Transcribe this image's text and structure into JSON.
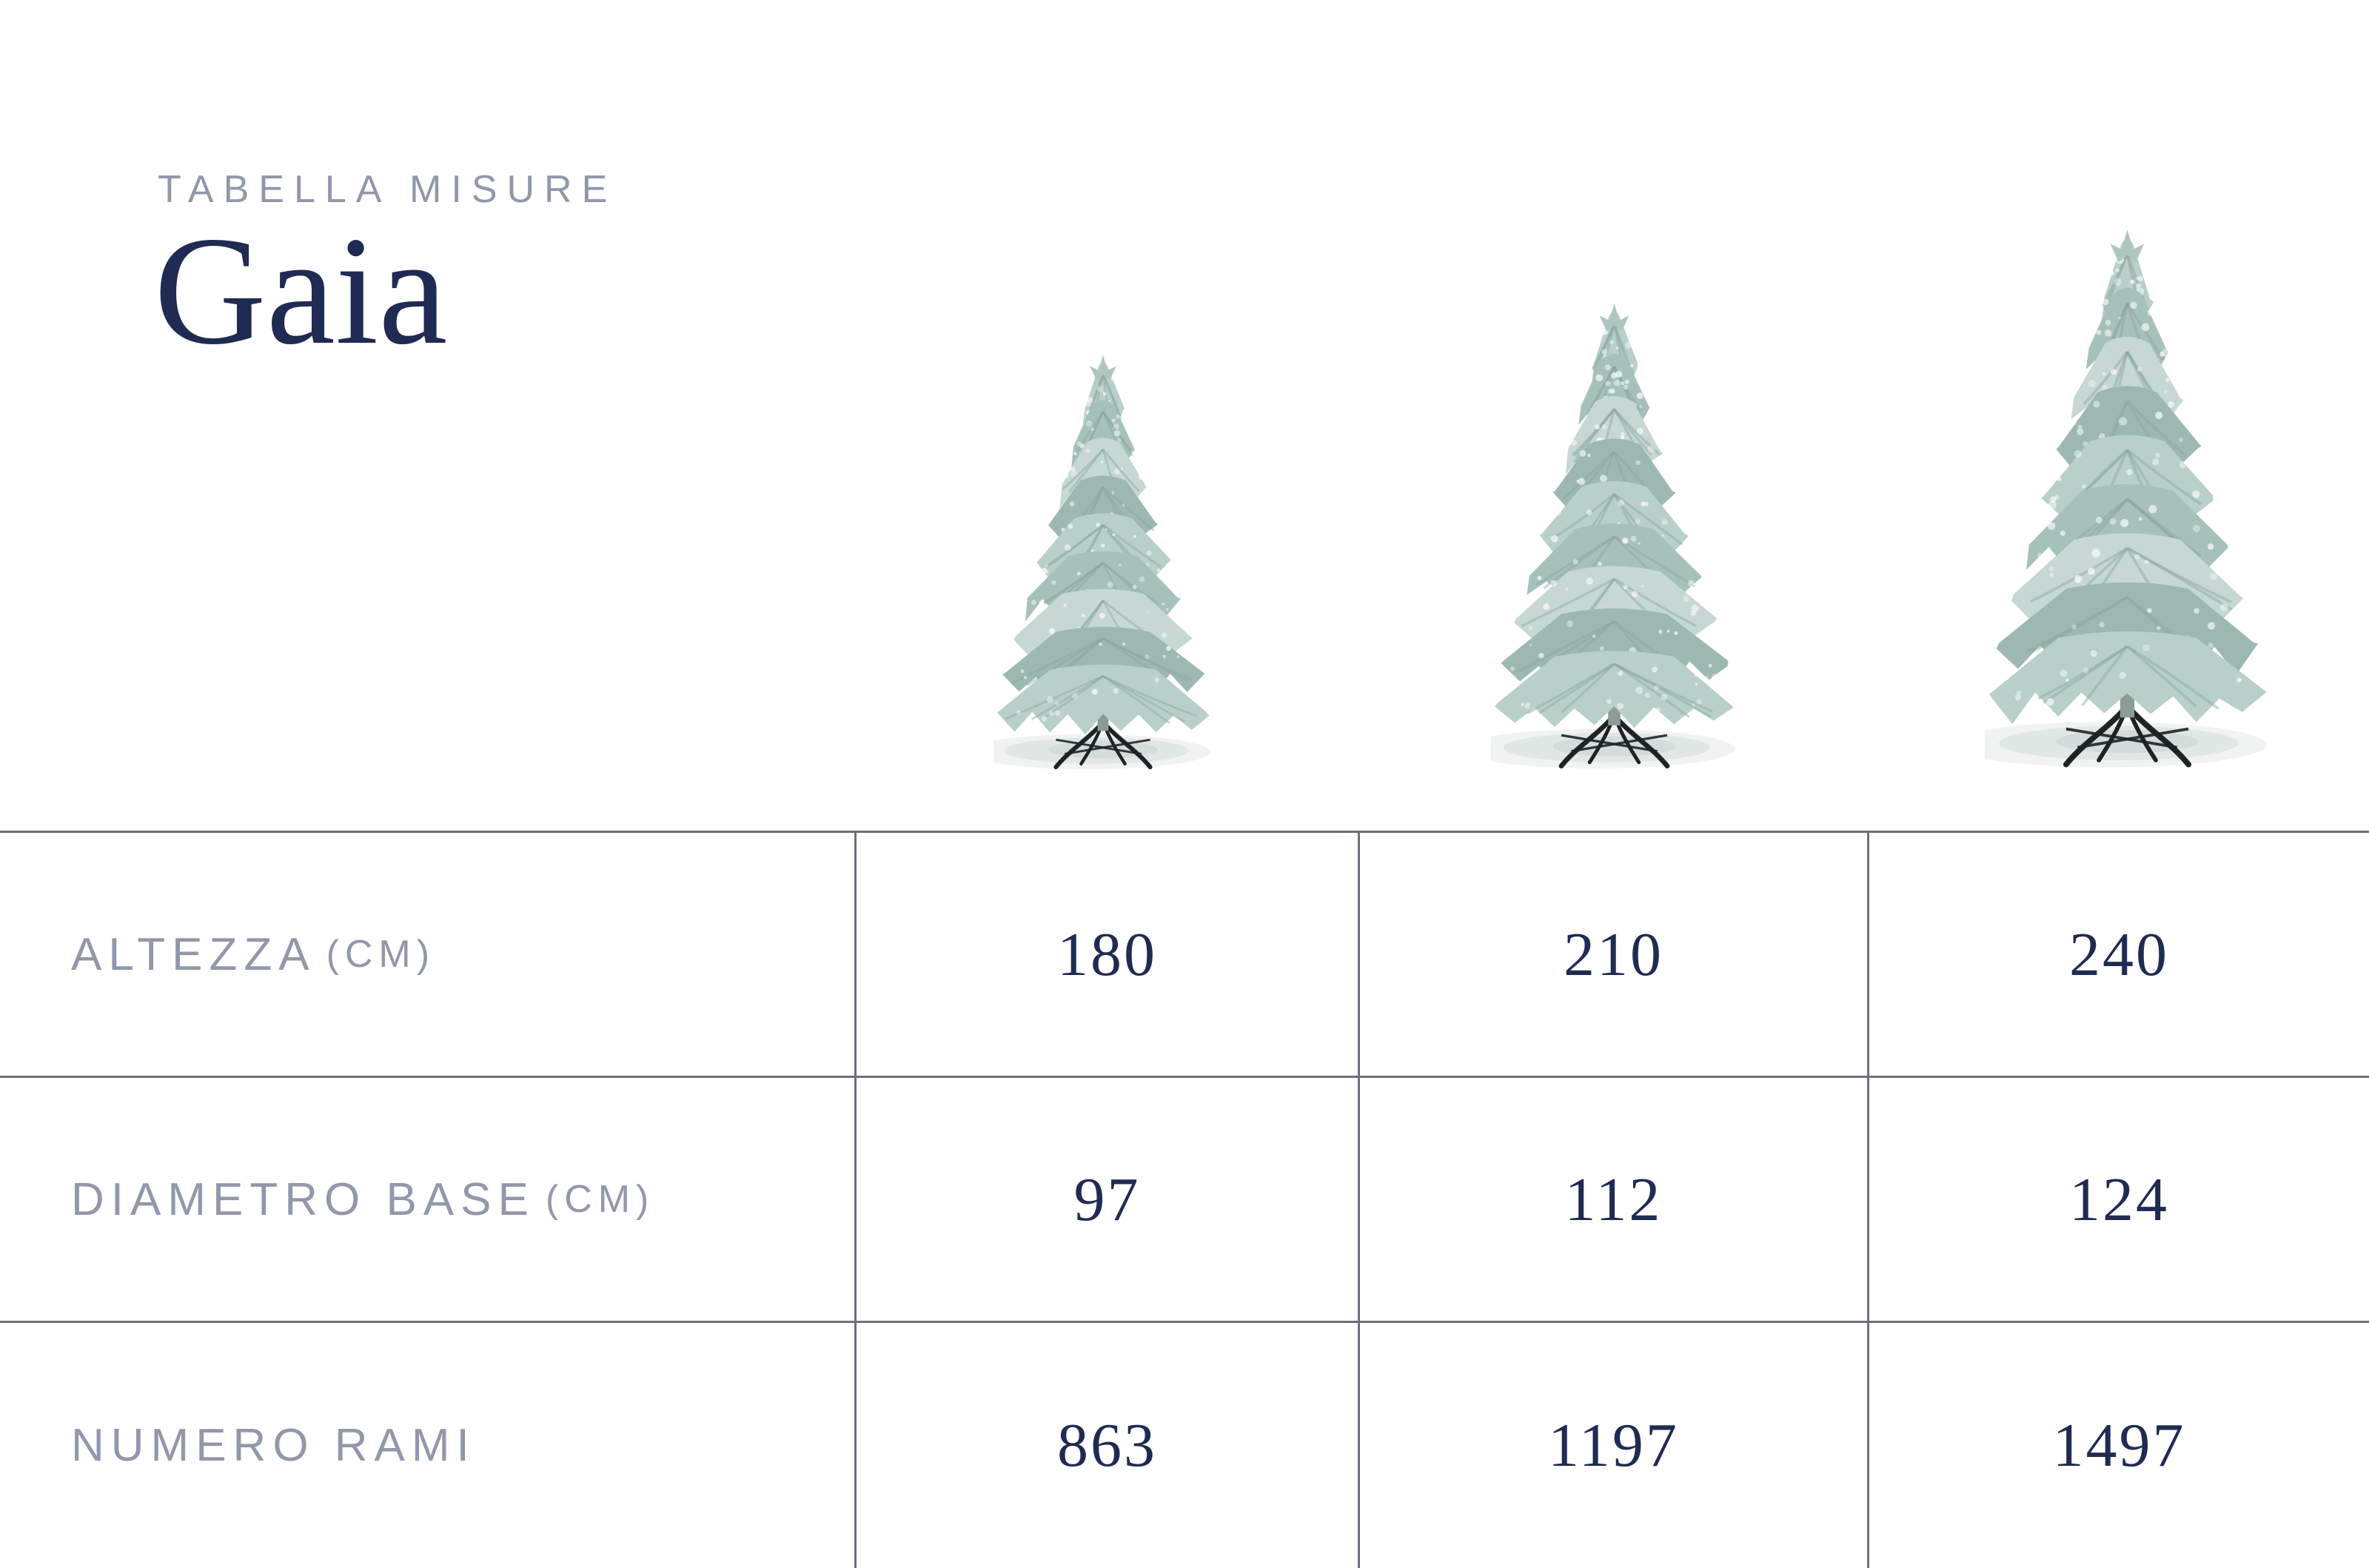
{
  "header": {
    "eyebrow": "TABELLA MISURE",
    "title": "Gaia"
  },
  "trees": [
    {
      "icon": "flocked-christmas-tree-icon",
      "size_label": "180"
    },
    {
      "icon": "flocked-christmas-tree-icon",
      "size_label": "210"
    },
    {
      "icon": "flocked-christmas-tree-icon",
      "size_label": "240"
    }
  ],
  "table": {
    "rows": [
      {
        "label": "ALTEZZA",
        "unit": "(CM)",
        "values": [
          "180",
          "210",
          "240"
        ]
      },
      {
        "label": "DIAMETRO BASE",
        "unit": "(CM)",
        "values": [
          "97",
          "112",
          "124"
        ]
      },
      {
        "label": "NUMERO RAMI",
        "unit": "",
        "values": [
          "863",
          "1197",
          "1497"
        ]
      }
    ]
  },
  "chart_data": {
    "type": "table",
    "title": "Tabella misure Gaia",
    "columns": [
      "180 cm",
      "210 cm",
      "240 cm"
    ],
    "rows": [
      {
        "label": "Altezza (cm)",
        "values": [
          180,
          210,
          240
        ]
      },
      {
        "label": "Diametro base (cm)",
        "values": [
          97,
          112,
          124
        ]
      },
      {
        "label": "Numero rami",
        "values": [
          863,
          1197,
          1497
        ]
      }
    ]
  },
  "colors": {
    "navy": "#1f2b52",
    "label_gray": "#9298aa",
    "line_gray": "#6c6f7a",
    "tree_light": "#c7d8d4",
    "tree_dark": "#9db8b2",
    "background": "#ffffff"
  }
}
